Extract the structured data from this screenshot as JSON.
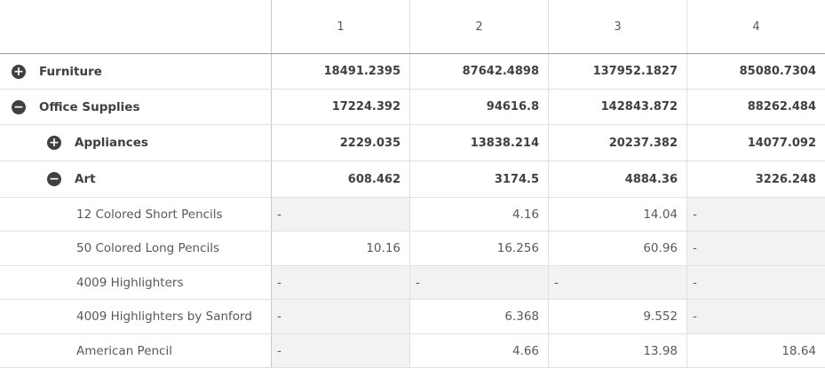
{
  "columns": [
    "1",
    "2",
    "3",
    "4"
  ],
  "rows": [
    {
      "label": "Furniture",
      "toggle": "+",
      "values": [
        "18491.2395",
        "87642.4898",
        "137952.1827",
        "85080.7304"
      ]
    },
    {
      "label": "Office Supplies",
      "toggle": "−",
      "values": [
        "17224.392",
        "94616.8",
        "142843.872",
        "88262.484"
      ]
    },
    {
      "label": "Appliances",
      "toggle": "+",
      "values": [
        "2229.035",
        "13838.214",
        "20237.382",
        "14077.092"
      ]
    },
    {
      "label": "Art",
      "toggle": "−",
      "values": [
        "608.462",
        "3174.5",
        "4884.36",
        "3226.248"
      ]
    },
    {
      "label": "12 Colored Short Pencils",
      "values": [
        "-",
        "4.16",
        "14.04",
        "-"
      ]
    },
    {
      "label": "50 Colored Long Pencils",
      "values": [
        "10.16",
        "16.256",
        "60.96",
        "-"
      ]
    },
    {
      "label": "4009 Highlighters",
      "values": [
        "-",
        "-",
        "-",
        "-"
      ]
    },
    {
      "label": "4009 Highlighters by Sanford",
      "values": [
        "-",
        "6.368",
        "9.552",
        "-"
      ]
    },
    {
      "label": "American Pencil",
      "values": [
        "-",
        "4.66",
        "13.98",
        "18.64"
      ]
    }
  ]
}
